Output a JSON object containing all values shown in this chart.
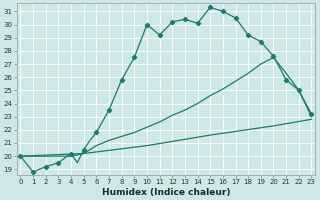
{
  "xlabel": "Humidex (Indice chaleur)",
  "bg_color": "#cde8e5",
  "line_color": "#1e7a6e",
  "grid_color": "#b0d5d0",
  "yticks": [
    19,
    20,
    21,
    22,
    23,
    24,
    25,
    26,
    27,
    28,
    29,
    30,
    31
  ],
  "xticks": [
    0,
    1,
    2,
    3,
    4,
    5,
    6,
    7,
    8,
    9,
    10,
    11,
    12,
    13,
    14,
    15,
    16,
    17,
    18,
    19,
    20,
    21,
    22,
    23
  ],
  "xlim": [
    -0.3,
    23.3
  ],
  "ylim": [
    18.6,
    31.6
  ],
  "line1_x": [
    0,
    1,
    2,
    3,
    4,
    4.5,
    5,
    5.5,
    6,
    7,
    8,
    9,
    10,
    11,
    12,
    13,
    14,
    15,
    16,
    17,
    18,
    19,
    20,
    21,
    22,
    23
  ],
  "line1_y": [
    20.0,
    18.8,
    19.2,
    19.5,
    20.2,
    19.5,
    20.5,
    21.2,
    21.8,
    23.5,
    25.8,
    27.5,
    30.0,
    29.2,
    30.2,
    30.4,
    30.1,
    31.3,
    31.0,
    30.5,
    29.2,
    28.7,
    27.6,
    25.8,
    25.0,
    23.2
  ],
  "mark1_x": [
    0,
    1,
    2,
    3,
    4,
    5,
    6,
    7,
    8,
    9,
    10,
    11,
    12,
    13,
    14,
    15,
    16,
    17,
    18,
    19,
    20,
    21,
    22,
    23
  ],
  "mark1_y": [
    20.0,
    18.8,
    19.2,
    19.5,
    20.2,
    20.5,
    21.8,
    23.5,
    25.8,
    27.5,
    30.0,
    29.2,
    30.2,
    30.4,
    30.1,
    31.3,
    31.0,
    30.5,
    29.2,
    28.7,
    27.6,
    25.8,
    25.0,
    23.2
  ],
  "line2_x": [
    0,
    4,
    5,
    6,
    7,
    8,
    9,
    10,
    11,
    12,
    13,
    14,
    15,
    16,
    17,
    18,
    19,
    20,
    21,
    22,
    23
  ],
  "line2_y": [
    20.0,
    20.0,
    20.2,
    20.8,
    21.2,
    21.5,
    21.8,
    22.2,
    22.6,
    23.1,
    23.5,
    24.0,
    24.6,
    25.1,
    25.7,
    26.3,
    27.0,
    27.5,
    26.3,
    25.0,
    23.0
  ],
  "line3_x": [
    0,
    5,
    10,
    15,
    20,
    23
  ],
  "line3_y": [
    20.0,
    20.2,
    20.8,
    21.6,
    22.3,
    22.8
  ]
}
